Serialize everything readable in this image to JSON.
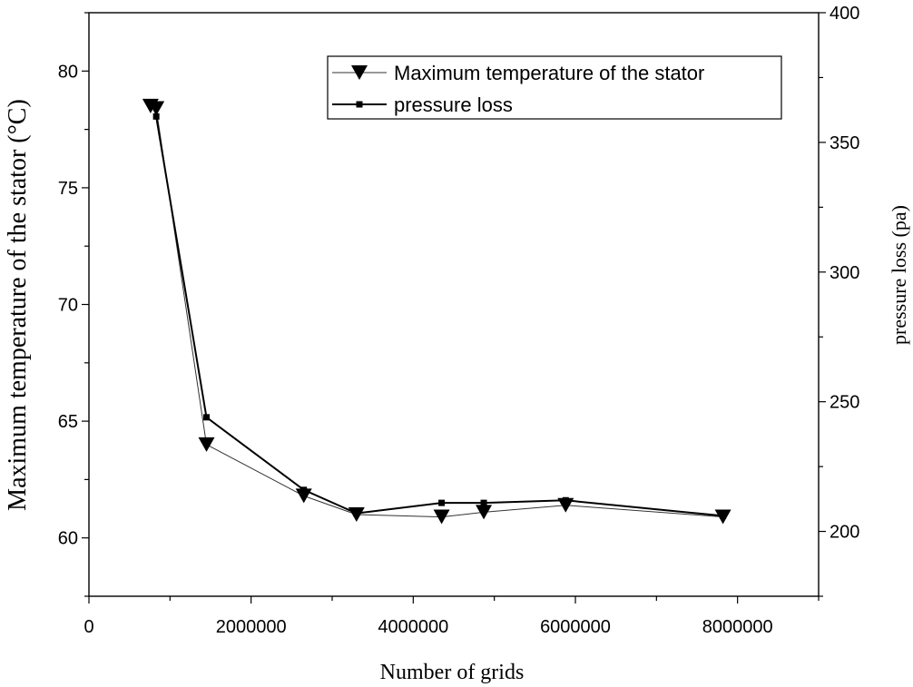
{
  "chart_data": {
    "type": "line",
    "title": "",
    "xlabel": "Number of grids",
    "ylabel_left": "Maximum temperature of the stator (°C)",
    "ylabel_right": "pressure loss (pa)",
    "xlim": [
      0,
      9000000
    ],
    "ylim_left": [
      57.5,
      82.5
    ],
    "ylim_right": [
      175,
      400
    ],
    "x_ticks": [
      0,
      2000000,
      4000000,
      6000000,
      8000000
    ],
    "x_tick_labels": [
      "0",
      "2000000",
      "4000000",
      "6000000",
      "8000000"
    ],
    "y_left_ticks": [
      60,
      65,
      70,
      75,
      80
    ],
    "y_left_tick_labels": [
      "60",
      "65",
      "70",
      "75",
      "80"
    ],
    "y_right_ticks": [
      200,
      250,
      300,
      350,
      400
    ],
    "y_right_tick_labels": [
      "200",
      "250",
      "300",
      "350",
      "400"
    ],
    "grid": false,
    "legend_position": "top-right",
    "series": [
      {
        "name": "Maximum temperature of the stator",
        "axis": "left",
        "marker": "triangle-down",
        "color": "#000000",
        "x": [
          760000,
          830000,
          1450000,
          2650000,
          3300000,
          4350000,
          4870000,
          5880000,
          7820000
        ],
        "values": [
          78.5,
          78.4,
          64.0,
          61.8,
          61.0,
          60.9,
          61.1,
          61.4,
          60.9
        ]
      },
      {
        "name": "pressure loss",
        "axis": "right",
        "marker": "square",
        "color": "#000000",
        "x": [
          830000,
          1450000,
          2650000,
          3300000,
          4350000,
          4870000,
          5880000,
          7820000
        ],
        "values": [
          360,
          244,
          216,
          207,
          211,
          211,
          212,
          206
        ]
      }
    ]
  }
}
